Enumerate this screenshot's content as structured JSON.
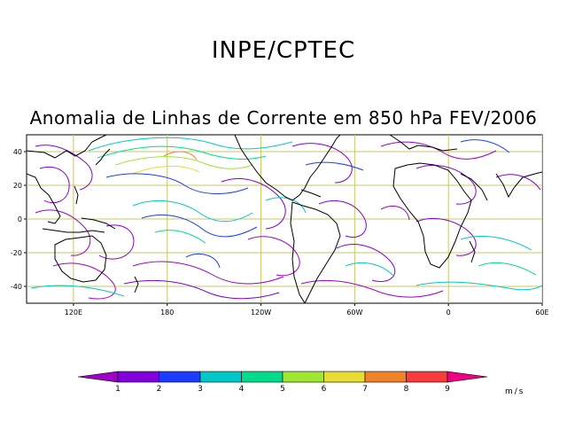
{
  "header": {
    "institution": "INPE/CPTEC",
    "title": "Anomalia de Linhas de Corrente em 850 hPa FEV/2006"
  },
  "map": {
    "projection": "cylindrical",
    "lon_range": [
      90,
      420
    ],
    "lat_range": [
      -50,
      50
    ],
    "lat_ticks": [
      {
        "value": 40,
        "label": "40"
      },
      {
        "value": 20,
        "label": "20"
      },
      {
        "value": 0,
        "label": "0"
      },
      {
        "value": -20,
        "label": "-20"
      },
      {
        "value": -40,
        "label": "-40"
      }
    ],
    "lon_ticks": [
      {
        "value": 120,
        "label": "120E"
      },
      {
        "value": 180,
        "label": "180"
      },
      {
        "value": 240,
        "label": "120W"
      },
      {
        "value": 300,
        "label": "60W"
      },
      {
        "value": 360,
        "label": "0"
      },
      {
        "value": 420,
        "label": "60E"
      }
    ],
    "grid": true
  },
  "colorbar": {
    "units": "m/s",
    "boundaries": [
      "1",
      "2",
      "3",
      "4",
      "5",
      "6",
      "7",
      "8",
      "9"
    ],
    "colors": [
      "#a000c8",
      "#8200dc",
      "#1e3cff",
      "#00c8c8",
      "#00dc8c",
      "#a0e632",
      "#e6dc32",
      "#f08228",
      "#fa3c3c",
      "#f00082"
    ]
  }
}
